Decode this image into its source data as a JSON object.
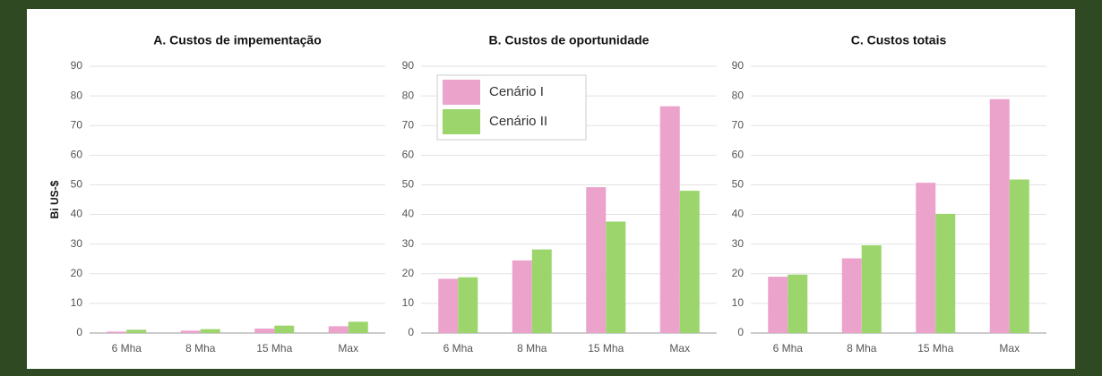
{
  "chart_data": [
    {
      "type": "bar",
      "title": "A. Custos de impementação",
      "ylabel": "Bi US-$",
      "categories": [
        "6 Mha",
        "8 Mha",
        "15 Mha",
        "Max"
      ],
      "series": [
        {
          "color": "#eba3cc",
          "values": [
            0.5,
            0.8,
            1.5,
            2.3
          ]
        },
        {
          "color": "#9bd56c",
          "values": [
            1.1,
            1.3,
            2.5,
            3.8
          ]
        }
      ],
      "ylim": [
        0,
        90
      ],
      "yticks": [
        0,
        10,
        20,
        30,
        40,
        50,
        60,
        70,
        80,
        90
      ],
      "grid": true
    },
    {
      "type": "bar",
      "title": "B. Custos de oportunidade",
      "legend": "upper left",
      "categories": [
        "6 Mha",
        "8 Mha",
        "15 Mha",
        "Max"
      ],
      "series": [
        {
          "name": "Cenário I",
          "color": "#eba3cc",
          "values": [
            18.3,
            24.5,
            49.2,
            76.5
          ]
        },
        {
          "name": "Cenário II",
          "color": "#9bd56c",
          "values": [
            18.8,
            28.2,
            37.6,
            48.0
          ]
        }
      ],
      "ylim": [
        0,
        90
      ],
      "yticks": [
        0,
        10,
        20,
        30,
        40,
        50,
        60,
        70,
        80,
        90
      ],
      "grid": true
    },
    {
      "type": "bar",
      "title": "C. Custos totais",
      "categories": [
        "6 Mha",
        "8 Mha",
        "15 Mha",
        "Max"
      ],
      "series": [
        {
          "color": "#eba3cc",
          "values": [
            19.0,
            25.2,
            50.7,
            78.9
          ]
        },
        {
          "color": "#9bd56c",
          "values": [
            19.7,
            29.6,
            40.2,
            51.8
          ]
        }
      ],
      "ylim": [
        0,
        90
      ],
      "yticks": [
        0,
        10,
        20,
        30,
        40,
        50,
        60,
        70,
        80,
        90
      ],
      "grid": true
    }
  ]
}
